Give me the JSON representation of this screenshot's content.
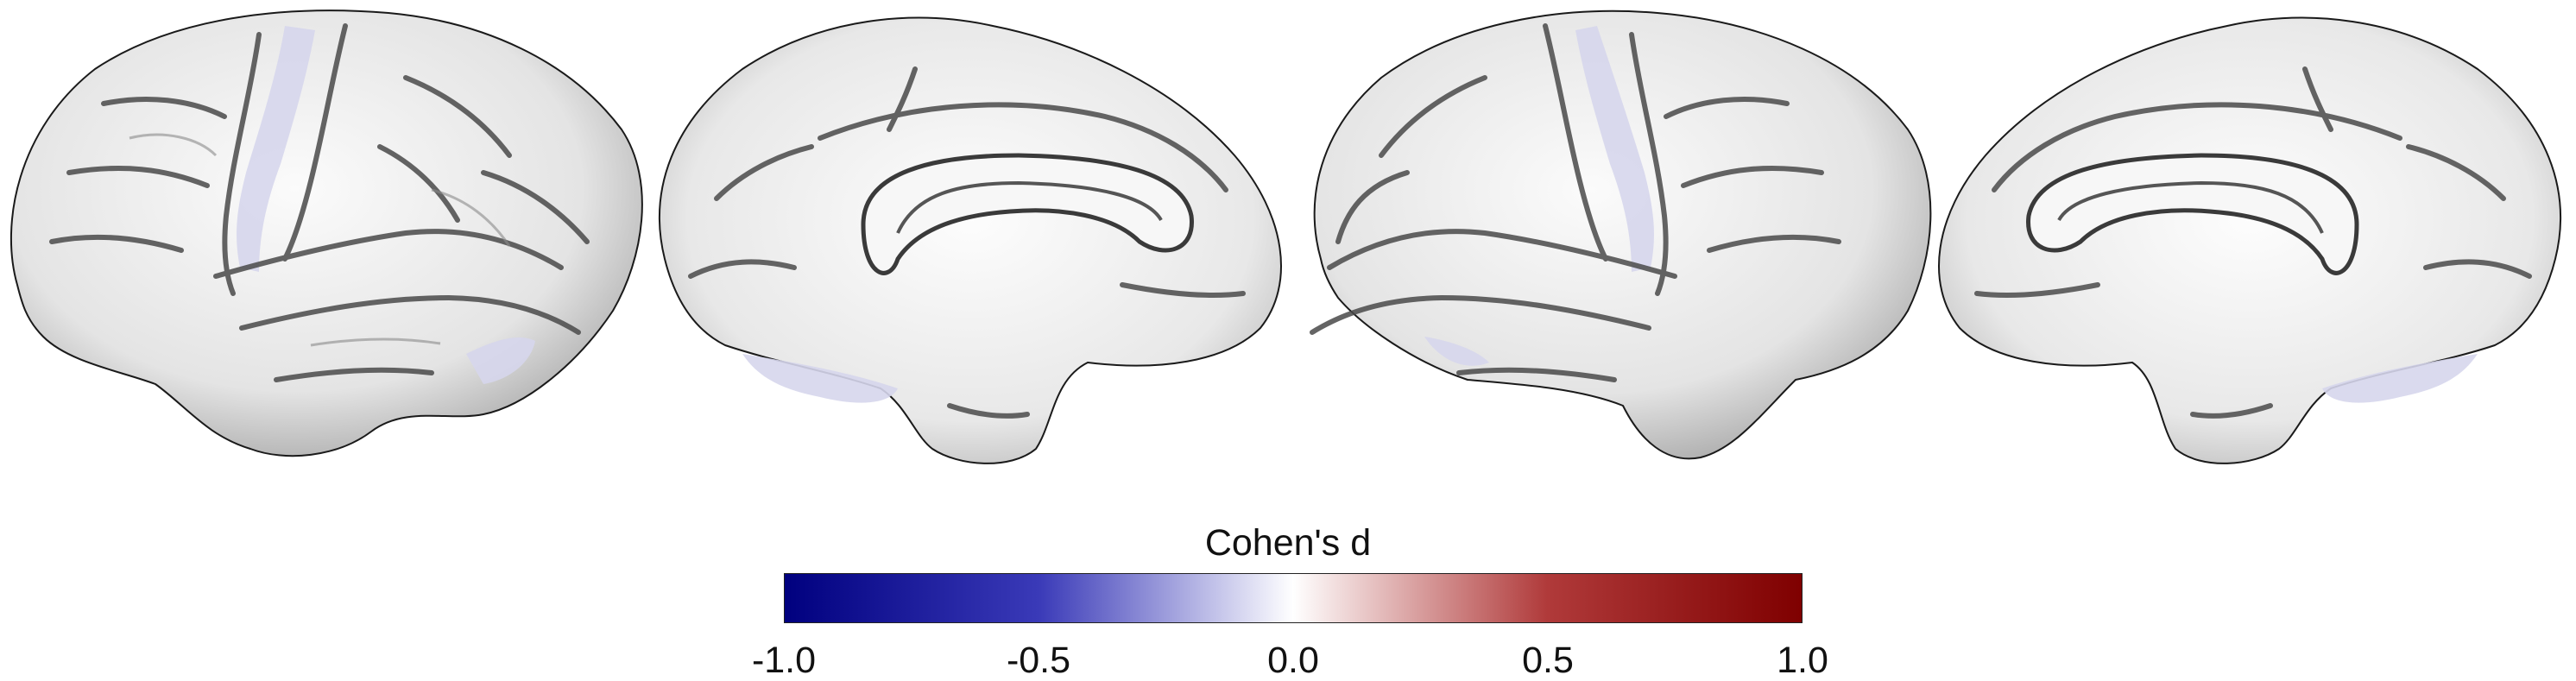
{
  "colorbar": {
    "title": "Cohen's d",
    "ticks": [
      "-1.0",
      "-0.5",
      "0.0",
      "0.5",
      "1.0"
    ],
    "range": [
      -1.0,
      1.0
    ],
    "colors": {
      "min": "#00007f",
      "low": "#3a3ab8",
      "mid": "#ffffff",
      "high": "#b03a3a",
      "max": "#7f0000"
    }
  },
  "views": [
    {
      "hemisphere": "left",
      "view": "lateral"
    },
    {
      "hemisphere": "left",
      "view": "medial"
    },
    {
      "hemisphere": "right",
      "view": "lateral"
    },
    {
      "hemisphere": "right",
      "view": "medial"
    }
  ],
  "surface_colors": {
    "base": "#ebebeb",
    "sulcus": "#4a4a4a",
    "effect_tint": "#d6d6ec"
  }
}
